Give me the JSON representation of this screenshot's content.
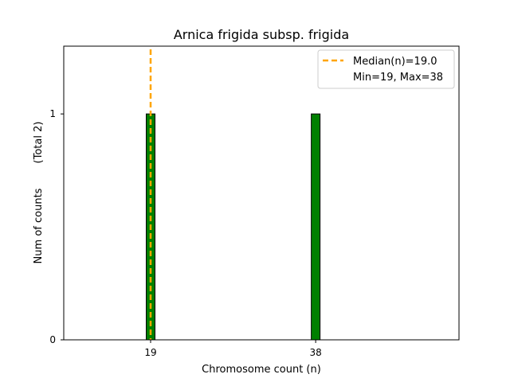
{
  "chart_data": {
    "type": "bar",
    "title": "Arnica frigida subsp. frigida",
    "xlabel": "Chromosome count (n)",
    "ylabel": "Num of counts",
    "ylabel_secondary": "(Total 2)",
    "x_ticks": [
      "19",
      "38"
    ],
    "y_ticks": [
      "0",
      "1"
    ],
    "xlim": [
      9,
      54.5
    ],
    "ylim": [
      0,
      1.3
    ],
    "bars": [
      {
        "x": 19,
        "value": 1
      },
      {
        "x": 38,
        "value": 1
      }
    ],
    "median": 19.0,
    "legend": {
      "position": "top-right",
      "entries": [
        "Median(n)=19.0",
        "Min=19, Max=38"
      ]
    },
    "grid": false,
    "colors": {
      "bar_fill": "#008000",
      "bar_edge": "#000000",
      "median_line": "#FFA500"
    }
  }
}
